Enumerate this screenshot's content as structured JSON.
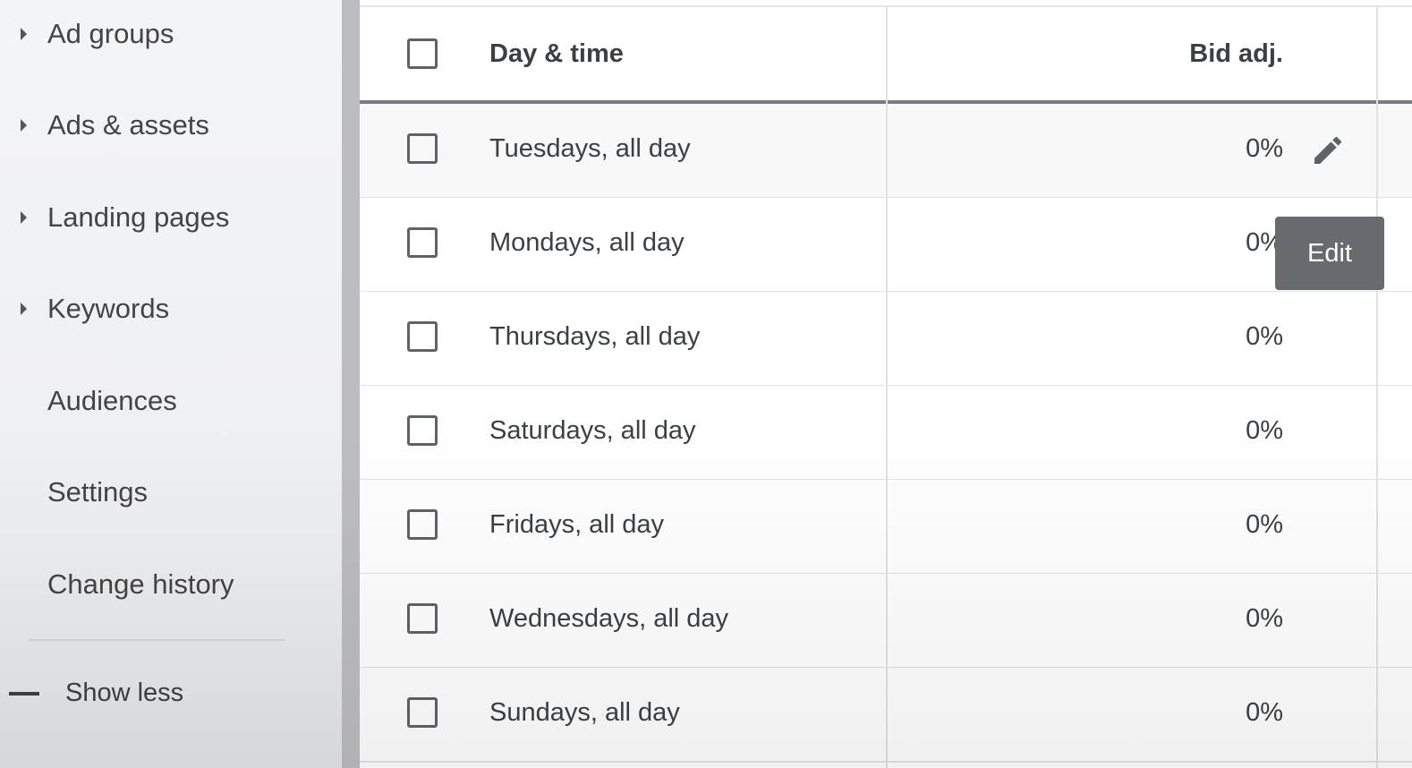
{
  "sidebar": {
    "items": [
      {
        "label": "Ad groups",
        "expandable": true
      },
      {
        "label": "Ads & assets",
        "expandable": true
      },
      {
        "label": "Landing pages",
        "expandable": true
      },
      {
        "label": "Keywords",
        "expandable": true
      },
      {
        "label": "Audiences",
        "expandable": false
      },
      {
        "label": "Settings",
        "expandable": false
      },
      {
        "label": "Change history",
        "expandable": false
      }
    ],
    "show_less": "Show less"
  },
  "table": {
    "columns": {
      "day_time": "Day & time",
      "bid_adj": "Bid adj."
    },
    "rows": [
      {
        "day": "Tuesdays, all day",
        "bid": "0%"
      },
      {
        "day": "Mondays, all day",
        "bid": "0%"
      },
      {
        "day": "Thursdays, all day",
        "bid": "0%"
      },
      {
        "day": "Saturdays, all day",
        "bid": "0%"
      },
      {
        "day": "Fridays, all day",
        "bid": "0%"
      },
      {
        "day": "Wednesdays, all day",
        "bid": "0%"
      },
      {
        "day": "Sundays, all day",
        "bid": "0%"
      }
    ]
  },
  "tooltip": {
    "label": "Edit"
  },
  "icons": {
    "edit": "pencil-icon",
    "expand": "triangle-right-icon",
    "collapse": "minus-icon"
  }
}
